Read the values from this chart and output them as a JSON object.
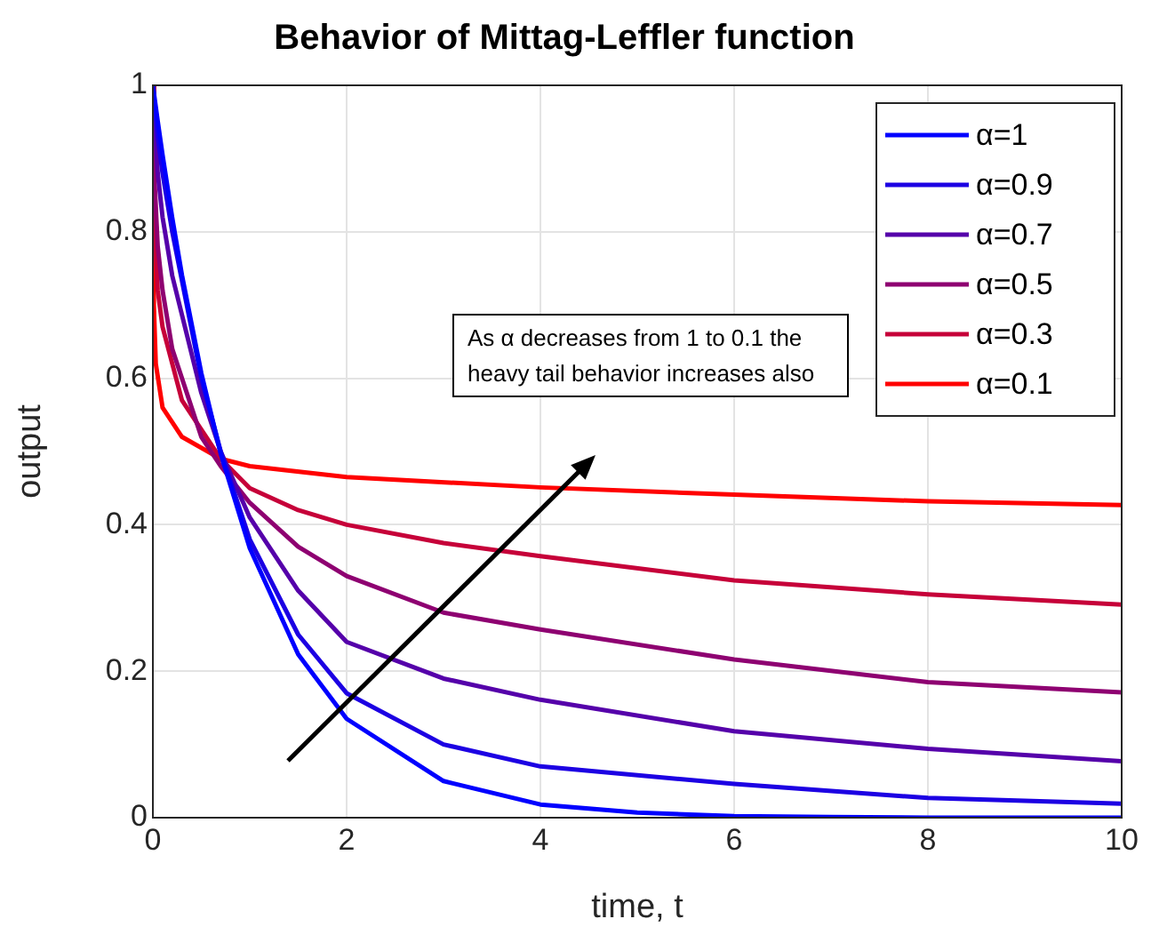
{
  "chart_data": {
    "type": "line",
    "title": "Behavior of Mittag-Leffler function",
    "xlabel": "time, t",
    "ylabel": "output",
    "xlim": [
      0,
      10
    ],
    "ylim": [
      0,
      1
    ],
    "xticks": [
      0,
      2,
      4,
      6,
      8,
      10
    ],
    "yticks": [
      0,
      0.2,
      0.4,
      0.6,
      0.8,
      1
    ],
    "grid": true,
    "legend": "top right",
    "marker": "none",
    "line_style": "solid",
    "annotations": [
      "As α decreases from 1 to 0.1 the heavy tail behavior increases also"
    ],
    "series": [
      {
        "name": "α=1",
        "color": "#0000ff",
        "x": [
          0,
          0.05,
          0.1,
          0.2,
          0.3,
          0.5,
          0.7,
          1,
          1.5,
          2,
          3,
          4,
          5,
          6,
          7,
          8,
          9,
          10
        ],
        "values": [
          1,
          0.951,
          0.905,
          0.819,
          0.741,
          0.607,
          0.497,
          0.368,
          0.223,
          0.135,
          0.05,
          0.018,
          0.007,
          0.002,
          0.001,
          0,
          0,
          0
        ]
      },
      {
        "name": "α=0.9",
        "color": "#1c00e3",
        "x": [
          0,
          0.05,
          0.1,
          0.2,
          0.5,
          0.7,
          1,
          1.5,
          2,
          3,
          4,
          6,
          8,
          10
        ],
        "values": [
          1,
          0.93,
          0.88,
          0.8,
          0.6,
          0.5,
          0.38,
          0.25,
          0.17,
          0.1,
          0.07,
          0.046,
          0.027,
          0.019
        ]
      },
      {
        "name": "α=0.7",
        "color": "#5500aa",
        "x": [
          0,
          0.05,
          0.1,
          0.2,
          0.5,
          0.7,
          1,
          1.5,
          2,
          3,
          4,
          6,
          8,
          10
        ],
        "values": [
          1,
          0.88,
          0.82,
          0.74,
          0.58,
          0.5,
          0.41,
          0.31,
          0.24,
          0.19,
          0.161,
          0.118,
          0.094,
          0.077
        ]
      },
      {
        "name": "α=0.5",
        "color": "#8e0071",
        "x": [
          0,
          0.01,
          0.05,
          0.1,
          0.2,
          0.5,
          0.7,
          1,
          1.5,
          2,
          3,
          4,
          6,
          8,
          10
        ],
        "values": [
          1,
          0.89,
          0.78,
          0.72,
          0.64,
          0.52,
          0.48,
          0.43,
          0.37,
          0.33,
          0.28,
          0.257,
          0.216,
          0.185,
          0.171
        ]
      },
      {
        "name": "α=0.3",
        "color": "#c60039",
        "x": [
          0,
          0.01,
          0.05,
          0.1,
          0.3,
          0.7,
          1,
          1.5,
          2,
          3,
          4,
          6,
          8,
          10
        ],
        "values": [
          1,
          0.83,
          0.72,
          0.67,
          0.57,
          0.49,
          0.45,
          0.42,
          0.4,
          0.375,
          0.357,
          0.324,
          0.305,
          0.291
        ]
      },
      {
        "name": "α=0.1",
        "color": "#ff0000",
        "x": [
          0,
          0.01,
          0.03,
          0.1,
          0.3,
          0.7,
          1,
          2,
          4,
          6,
          8,
          10
        ],
        "values": [
          1,
          0.7,
          0.62,
          0.56,
          0.52,
          0.49,
          0.48,
          0.465,
          0.451,
          0.441,
          0.432,
          0.427
        ]
      }
    ]
  }
}
